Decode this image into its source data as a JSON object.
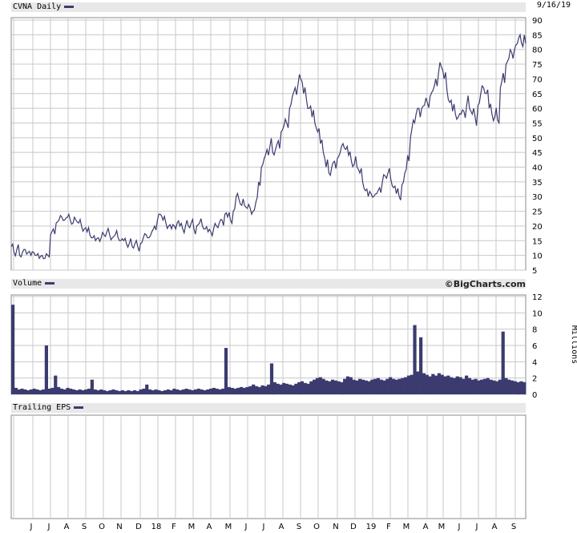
{
  "header": {
    "title": "CVNA Daily",
    "date": "9/16/19",
    "volume_title": "Volume",
    "credit": "©BigCharts.com",
    "eps_title": "Trailing EPS",
    "volume_unit": "Millions"
  },
  "colors": {
    "series": "#3b3b70",
    "grid": "#c8c8c8",
    "panel_header": "#e8e8e8"
  },
  "chart_data": [
    {
      "type": "line",
      "title": "CVNA Daily",
      "series": [
        {
          "name": "CVNA",
          "values": [
            13,
            11,
            12,
            10,
            11,
            12,
            11,
            10,
            11,
            10,
            9,
            10,
            9,
            10,
            17,
            19,
            21,
            22,
            23,
            22,
            23,
            22,
            21,
            22,
            21,
            20,
            19,
            18,
            17,
            16,
            15,
            16,
            16,
            17,
            18,
            17,
            16,
            17,
            16,
            15,
            15,
            14,
            14,
            13,
            14,
            13,
            14,
            16,
            17,
            16,
            18,
            20,
            22,
            24,
            22,
            21,
            20,
            19,
            20,
            21,
            20,
            19,
            20,
            20,
            21,
            19,
            20,
            21,
            20,
            19,
            18,
            18,
            19,
            20,
            21,
            22,
            24,
            23,
            22,
            25,
            30,
            29,
            27,
            27,
            26,
            26,
            25,
            28,
            35,
            40,
            43,
            46,
            47,
            45,
            46,
            49,
            52,
            54,
            55,
            60,
            64,
            67,
            68,
            70,
            65,
            63,
            60,
            57,
            55,
            52,
            48,
            45,
            40,
            38,
            40,
            42,
            43,
            45,
            48,
            46,
            44,
            42,
            41,
            40,
            38,
            35,
            32,
            30,
            31,
            30,
            31,
            33,
            35,
            37,
            38,
            36,
            33,
            31,
            30,
            34,
            38,
            44,
            50,
            56,
            58,
            60,
            60,
            61,
            62,
            64,
            66,
            70,
            72,
            74,
            70,
            66,
            62,
            59,
            58,
            57,
            58,
            59,
            61,
            60,
            58,
            57,
            61,
            65,
            67,
            65,
            60,
            58,
            57,
            56,
            67,
            72,
            75,
            77,
            79,
            80,
            82,
            85,
            81,
            82
          ]
        }
      ],
      "x_labels": [
        "J",
        "J",
        "A",
        "S",
        "O",
        "N",
        "D",
        "18",
        "F",
        "M",
        "A",
        "M",
        "J",
        "J",
        "A",
        "S",
        "O",
        "N",
        "D",
        "19",
        "F",
        "M",
        "A",
        "M",
        "J",
        "J",
        "A",
        "S"
      ],
      "y_ticks": [
        5,
        10,
        15,
        20,
        25,
        30,
        35,
        40,
        45,
        50,
        55,
        60,
        65,
        70,
        75,
        80,
        85,
        90
      ],
      "ylim": [
        5,
        90
      ],
      "grid": true
    },
    {
      "type": "bar",
      "title": "Volume",
      "ylabel": "Millions",
      "series": [
        {
          "name": "Volume",
          "values": [
            11,
            0.8,
            0.6,
            0.7,
            0.6,
            0.5,
            0.6,
            0.7,
            0.6,
            0.5,
            0.6,
            6,
            0.7,
            0.8,
            2.3,
            0.9,
            0.7,
            0.6,
            0.8,
            0.7,
            0.6,
            0.5,
            0.6,
            0.5,
            0.6,
            0.7,
            1.8,
            0.6,
            0.5,
            0.6,
            0.5,
            0.4,
            0.5,
            0.6,
            0.5,
            0.4,
            0.5,
            0.4,
            0.5,
            0.4,
            0.5,
            0.4,
            0.6,
            0.7,
            1.2,
            0.6,
            0.5,
            0.6,
            0.5,
            0.4,
            0.5,
            0.6,
            0.5,
            0.7,
            0.6,
            0.5,
            0.6,
            0.7,
            0.6,
            0.5,
            0.6,
            0.7,
            0.6,
            0.5,
            0.6,
            0.7,
            0.8,
            0.7,
            0.6,
            0.7,
            5.7,
            0.9,
            0.8,
            0.7,
            0.8,
            0.9,
            0.8,
            0.9,
            1.0,
            1.2,
            1.0,
            0.9,
            1.1,
            1.0,
            1.2,
            3.8,
            1.5,
            1.3,
            1.2,
            1.4,
            1.3,
            1.2,
            1.1,
            1.3,
            1.5,
            1.6,
            1.4,
            1.3,
            1.6,
            1.8,
            2.0,
            2.1,
            1.9,
            1.7,
            1.6,
            1.8,
            1.7,
            1.6,
            1.5,
            1.9,
            2.2,
            2.1,
            1.8,
            1.7,
            1.9,
            1.8,
            1.7,
            1.6,
            1.8,
            1.9,
            2.0,
            1.8,
            1.7,
            1.9,
            2.1,
            1.9,
            1.8,
            1.9,
            2.0,
            2.1,
            2.3,
            2.4,
            8.5,
            2.8,
            7.0,
            2.6,
            2.4,
            2.2,
            2.5,
            2.3,
            2.6,
            2.4,
            2.2,
            2.3,
            2.1,
            2.0,
            2.2,
            2.1,
            1.9,
            2.3,
            2.0,
            1.8,
            1.9,
            1.7,
            1.8,
            1.9,
            2.0,
            1.8,
            1.7,
            1.6,
            1.8,
            7.7,
            2.0,
            1.8,
            1.7,
            1.6,
            1.5,
            1.6,
            1.5
          ]
        }
      ],
      "y_ticks": [
        0,
        2,
        4,
        6,
        8,
        10,
        12
      ],
      "ylim": [
        0,
        12
      ],
      "grid": true
    },
    {
      "type": "line",
      "title": "Trailing EPS",
      "series": [],
      "grid": true
    }
  ]
}
